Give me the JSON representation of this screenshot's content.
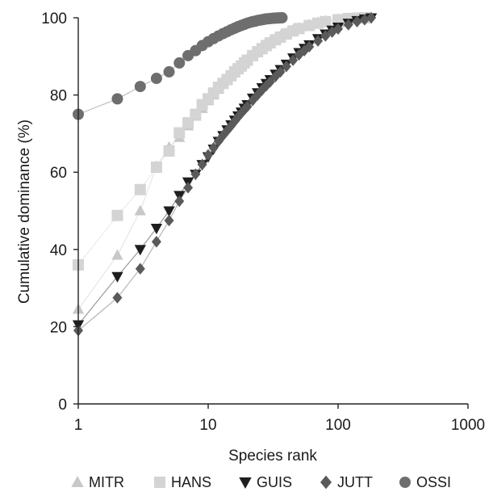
{
  "chart_data": {
    "type": "scatter",
    "title": "",
    "xlabel": "Species rank",
    "ylabel": "Cumulative dominance (%)",
    "x_scale": "log",
    "xlim": [
      1,
      1000
    ],
    "ylim": [
      0,
      100
    ],
    "x_ticks": [
      "1",
      "10",
      "100",
      "1000"
    ],
    "y_ticks": [
      "0",
      "20",
      "40",
      "60",
      "80",
      "100"
    ],
    "grid": false,
    "legend_position": "bottom",
    "series": [
      {
        "name": "MITR",
        "marker": "triangle-up",
        "color": "#c8c8c8",
        "x": [
          1,
          2,
          3,
          4,
          5,
          6,
          7,
          8,
          9,
          10,
          11,
          12,
          13,
          14,
          15,
          16,
          17,
          18,
          19,
          20,
          22,
          24,
          26,
          28,
          30,
          33,
          36,
          40,
          45,
          50,
          60,
          70,
          80,
          100,
          120,
          140,
          160
        ],
        "y": [
          24.5,
          38.5,
          50.0,
          61.5,
          66.5,
          69.0,
          72.0,
          74.5,
          76.5,
          78.5,
          80.0,
          81.5,
          83.0,
          84.0,
          85.0,
          86.0,
          87.0,
          87.8,
          88.5,
          89.3,
          90.5,
          91.5,
          92.3,
          93.0,
          93.8,
          94.6,
          95.3,
          96.0,
          96.8,
          97.4,
          98.2,
          98.8,
          99.2,
          99.6,
          99.8,
          99.9,
          100
        ]
      },
      {
        "name": "HANS",
        "marker": "square",
        "color": "#d4d4d4",
        "x": [
          1,
          2,
          3,
          4,
          5,
          6,
          7,
          8,
          9,
          10,
          11,
          12,
          13,
          14,
          15,
          16,
          17,
          18,
          19,
          20,
          22,
          24,
          26,
          28,
          30,
          33,
          36,
          40,
          45,
          50,
          60,
          70,
          80,
          100,
          120,
          140,
          160
        ],
        "y": [
          36.0,
          48.8,
          55.5,
          61.3,
          65.5,
          70.2,
          72.8,
          75.0,
          77.5,
          79.0,
          80.5,
          82.0,
          83.0,
          84.0,
          85.0,
          86.0,
          86.8,
          87.5,
          88.3,
          89.0,
          90.2,
          91.2,
          92.0,
          92.8,
          93.5,
          94.3,
          95.0,
          95.8,
          96.6,
          97.2,
          98.0,
          98.6,
          99.0,
          99.5,
          99.8,
          99.9,
          100
        ]
      },
      {
        "name": "GUIS",
        "marker": "triangle-down",
        "color": "#1e1e1e",
        "x": [
          1,
          2,
          3,
          4,
          5,
          6,
          7,
          8,
          9,
          10,
          11,
          12,
          13,
          14,
          15,
          16,
          17,
          18,
          19,
          20,
          22,
          24,
          26,
          28,
          30,
          33,
          36,
          40,
          45,
          50,
          55,
          60,
          70,
          80,
          90,
          100,
          120,
          140,
          160,
          180
        ],
        "y": [
          20.5,
          33.0,
          40.0,
          45.5,
          50.0,
          54.0,
          57.5,
          59.5,
          62.0,
          64.0,
          66.0,
          68.0,
          69.5,
          71.0,
          72.3,
          73.5,
          74.6,
          75.6,
          76.6,
          77.5,
          79.2,
          80.6,
          81.9,
          83.0,
          84.0,
          85.4,
          86.6,
          88.0,
          89.6,
          91.0,
          92.1,
          93.0,
          94.6,
          95.8,
          96.8,
          97.6,
          98.6,
          99.3,
          99.7,
          100
        ]
      },
      {
        "name": "JUTT",
        "marker": "diamond",
        "color": "#5a5a5a",
        "x": [
          1,
          2,
          3,
          4,
          5,
          6,
          7,
          8,
          9,
          10,
          11,
          12,
          13,
          14,
          15,
          16,
          17,
          18,
          19,
          20,
          22,
          24,
          26,
          28,
          30,
          33,
          36,
          40,
          45,
          50,
          55,
          60,
          70,
          80,
          90,
          100,
          120,
          140,
          160,
          180
        ],
        "y": [
          19.0,
          27.5,
          35.0,
          42.0,
          47.5,
          52.5,
          56.0,
          59.5,
          62.0,
          64.5,
          66.3,
          68.0,
          69.5,
          70.8,
          72.0,
          73.2,
          74.3,
          75.3,
          76.2,
          77.0,
          78.6,
          80.0,
          81.3,
          82.4,
          83.4,
          84.8,
          86.0,
          87.4,
          89.0,
          90.4,
          91.5,
          92.5,
          94.0,
          95.3,
          96.3,
          97.1,
          98.2,
          99.0,
          99.5,
          100
        ]
      },
      {
        "name": "OSSI",
        "marker": "circle",
        "color": "#6e6e6e",
        "x": [
          1,
          2,
          3,
          4,
          5,
          6,
          7,
          8,
          9,
          10,
          11,
          12,
          13,
          14,
          15,
          16,
          17,
          18,
          19,
          20,
          21,
          22,
          23,
          24,
          25,
          26,
          27,
          28,
          29,
          30,
          31,
          32,
          33,
          34,
          35,
          36,
          37
        ],
        "y": [
          75.0,
          79.0,
          82.2,
          84.3,
          86.0,
          88.3,
          90.2,
          91.5,
          92.8,
          93.8,
          94.6,
          95.3,
          95.9,
          96.4,
          96.9,
          97.3,
          97.7,
          98.0,
          98.3,
          98.6,
          98.8,
          99.0,
          99.1,
          99.3,
          99.4,
          99.5,
          99.6,
          99.7,
          99.75,
          99.8,
          99.85,
          99.9,
          99.92,
          99.94,
          99.96,
          99.98,
          100
        ]
      }
    ]
  }
}
